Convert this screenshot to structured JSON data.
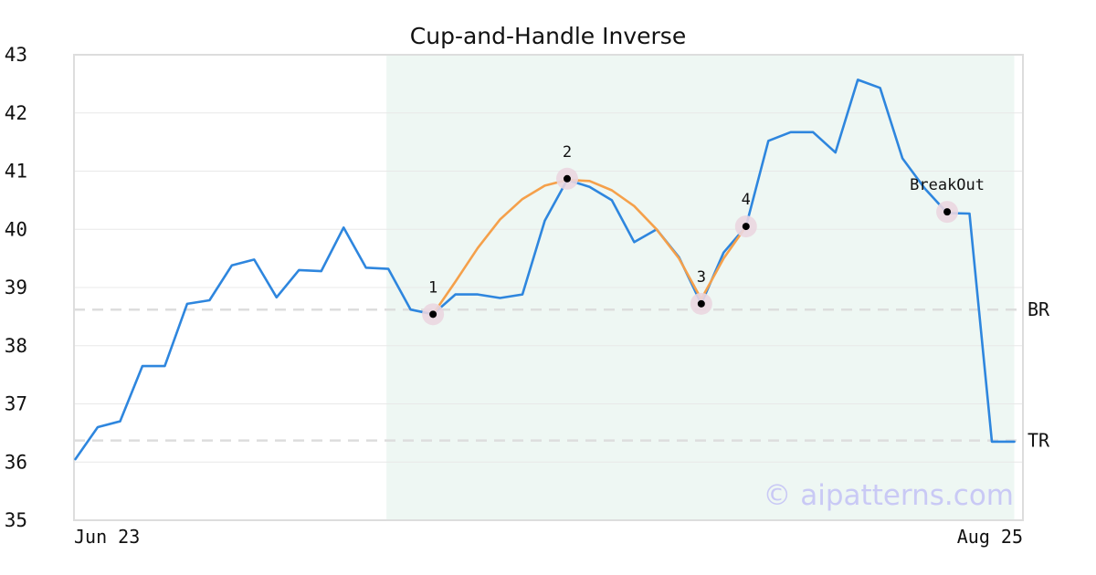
{
  "chart_data": {
    "type": "line",
    "title": "Cup-and-Handle Inverse",
    "xlabel": "",
    "ylabel": "",
    "ylim": [
      35,
      43
    ],
    "yticks": [
      35,
      36,
      37,
      38,
      39,
      40,
      41,
      42,
      43
    ],
    "x_tick_labels": [
      "Jun 23",
      "Aug 25"
    ],
    "grid": "horizontal",
    "series": [
      {
        "values": [
          36.05,
          36.6,
          36.7,
          37.65,
          37.65,
          38.72,
          38.78,
          39.38,
          39.48,
          38.83,
          39.3,
          39.28,
          40.03,
          39.34,
          39.32,
          38.62,
          38.54,
          38.88,
          38.88,
          38.82,
          38.88,
          40.15,
          40.85,
          40.73,
          40.5,
          39.78,
          40.0,
          39.52,
          38.72,
          39.6,
          40.05,
          41.52,
          41.67,
          41.67,
          41.32,
          42.57,
          42.43,
          41.22,
          40.7,
          40.28,
          40.27,
          36.35,
          36.35
        ],
        "color": "#2e86de"
      },
      {
        "x_index": [
          16,
          17,
          18,
          19,
          20,
          21,
          22,
          23,
          24,
          25,
          26,
          27,
          28,
          29,
          30
        ],
        "values": [
          38.54,
          39.1,
          39.68,
          40.17,
          40.52,
          40.75,
          40.85,
          40.83,
          40.67,
          40.4,
          40.0,
          39.5,
          38.8,
          39.5,
          40.05
        ],
        "color": "#f5a04a"
      }
    ],
    "shaded_region": {
      "from_index": 14,
      "to_index": 42,
      "color": "#eef7f3"
    },
    "reference_lines": [
      {
        "label": "BR",
        "value": 38.62
      },
      {
        "label": "TR",
        "value": 36.37
      }
    ],
    "annotations": [
      {
        "label": "1",
        "index": 16,
        "value": 38.54
      },
      {
        "label": "2",
        "index": 22,
        "value": 40.87
      },
      {
        "label": "3",
        "index": 28,
        "value": 38.72
      },
      {
        "label": "4",
        "index": 30,
        "value": 40.05
      },
      {
        "label": "BreakOut",
        "index": 39,
        "value": 40.3
      }
    ],
    "watermark": "© aipatterns.com",
    "colors": {
      "marker_halo": "#ead6e0",
      "marker_dot": "#000000",
      "reference_line": "#dddddd",
      "grid": "#e8e8e8",
      "frame": "#dddddd"
    }
  }
}
